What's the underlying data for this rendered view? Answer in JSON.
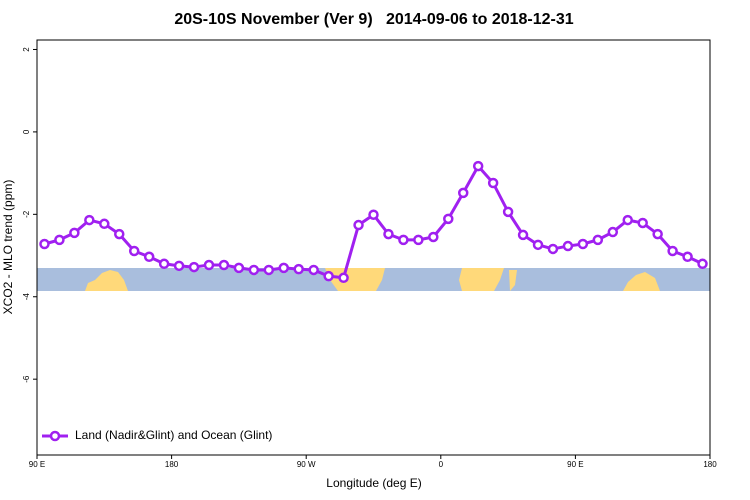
{
  "chart_data": {
    "type": "line",
    "title": "20S-10S November (Ver 9)   2014-09-06 to 2018-12-31",
    "x_label": "Longitude (deg E)",
    "y_label": "XCO2 - MLO trend (ppm)",
    "x": [
      95,
      105,
      115,
      125,
      135,
      145,
      155,
      165,
      175,
      185,
      195,
      205,
      215,
      225,
      235,
      245,
      255,
      265,
      275,
      285,
      295,
      305,
      315,
      325,
      335,
      345,
      355,
      365,
      375,
      385,
      395,
      405,
      415,
      425,
      435,
      445,
      455,
      465,
      475,
      485,
      495,
      505,
      515,
      525,
      535
    ],
    "series": [
      {
        "name": "Land (Nadir&Glint) and Ocean (Glint)",
        "color": "#a020f0",
        "values": [
          -2.72,
          -2.62,
          -2.45,
          -2.14,
          -2.23,
          -2.48,
          -2.89,
          -3.03,
          -3.2,
          -3.25,
          -3.28,
          -3.23,
          -3.23,
          -3.3,
          -3.35,
          -3.35,
          -3.3,
          -3.33,
          -3.35,
          -3.5,
          -3.54,
          -2.26,
          -2.01,
          -2.48,
          -2.62,
          -2.62,
          -2.55,
          -2.11,
          -1.48,
          -0.83,
          -1.24,
          -1.94,
          -2.5,
          -2.74,
          -2.84,
          -2.77,
          -2.72,
          -2.62,
          -2.43,
          -2.14,
          -2.21,
          -2.48,
          -2.89,
          -3.03,
          -3.2
        ]
      }
    ],
    "xlim": [
      90,
      540
    ],
    "xticks": [
      {
        "value": 90,
        "label": "90 E"
      },
      180,
      {
        "value": 270,
        "label": "90 W"
      },
      {
        "value": 360,
        "label": "0"
      },
      {
        "value": 450,
        "label": "90 E"
      },
      180
    ],
    "ylim": [
      -7.84,
      2.23
    ],
    "yticks": [
      2,
      0,
      -2,
      -4,
      -6
    ],
    "legend": "bottom-left"
  }
}
